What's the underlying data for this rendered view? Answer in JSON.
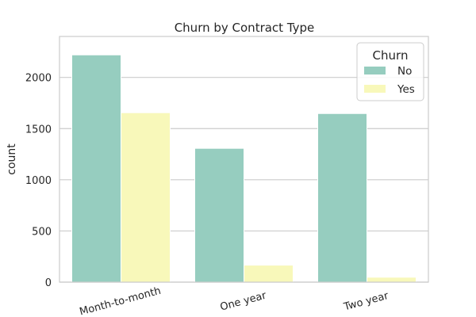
{
  "chart_data": {
    "type": "bar",
    "title": "Churn by Contract Type",
    "xlabel": "",
    "ylabel": "count",
    "categories": [
      "Month-to-month",
      "One year",
      "Two year"
    ],
    "series": [
      {
        "name": "No",
        "values": [
          2220,
          1307,
          1647
        ],
        "color": "#96CDBF"
      },
      {
        "name": "Yes",
        "values": [
          1655,
          166,
          48
        ],
        "color": "#F8F8BA"
      }
    ],
    "ylim": [
      0,
      2400
    ],
    "yticks": [
      0,
      500,
      1000,
      1500,
      2000
    ],
    "grid": "y",
    "legend": {
      "title": "Churn",
      "position": "top-right"
    }
  }
}
